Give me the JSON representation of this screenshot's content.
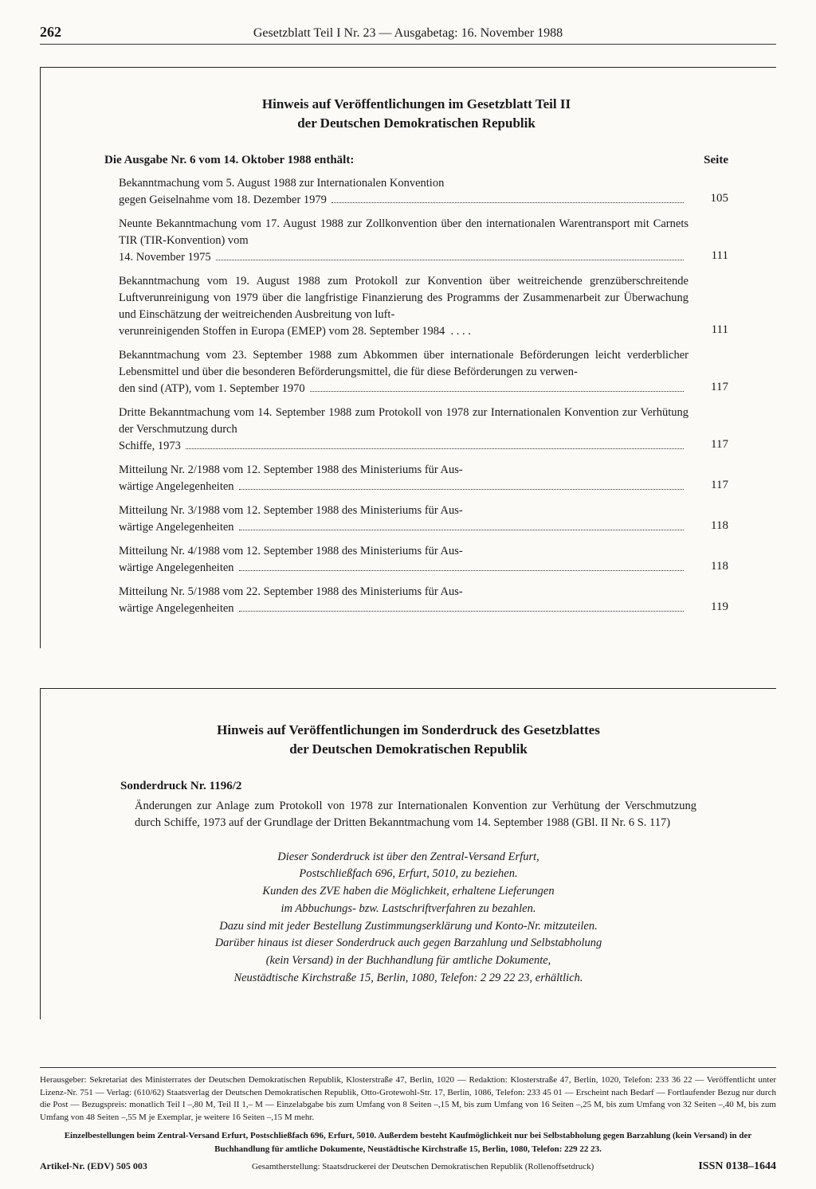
{
  "header": {
    "page_number": "262",
    "title": "Gesetzblatt Teil I Nr. 23 — Ausgabetag: 16. November 1988"
  },
  "section1": {
    "title_l1": "Hinweis auf Veröffentlichungen im Gesetzblatt Teil II",
    "title_l2": "der Deutschen Demokratischen Republik",
    "issue_head": "Die Ausgabe Nr. 6 vom 14. Oktober 1988 enthält:",
    "page_label": "Seite",
    "entries": [
      {
        "pre": "Bekanntmachung vom 5. August 1988 zur Internationalen Konvention",
        "last": "gegen Geiselnahme vom 18. Dezember 1979",
        "page": "105"
      },
      {
        "pre": "Neunte Bekanntmachung vom 17. August 1988 zur Zollkonvention über den internationalen Warentransport mit Carnets TIR (TIR-Konvention) vom",
        "last": "14. November 1975",
        "page": "111"
      },
      {
        "pre": "Bekanntmachung vom 19. August 1988 zum Protokoll zur Konvention über weitreichende grenzüberschreitende Luftverunreinigung von 1979 über die langfristige Finanzierung des Programms der Zusammenarbeit zur Überwachung und Einschätzung der weitreichenden Ausbreitung von luft-",
        "last": "verunreinigenden Stoffen in Europa (EMEP) vom 28. September 1984  . . . .",
        "page": "111",
        "nodots": true
      },
      {
        "pre": "Bekanntmachung vom 23. September 1988 zum Abkommen über internationale Beförderungen leicht verderblicher Lebensmittel und über die besonderen Beförderungsmittel, die für diese Beförderungen zu verwen-",
        "last": "den sind (ATP), vom 1. September 1970",
        "page": "117"
      },
      {
        "pre": "Dritte Bekanntmachung vom 14. September 1988 zum Protokoll von 1978 zur Internationalen Konvention zur Verhütung der Verschmutzung durch",
        "last": "Schiffe, 1973",
        "page": "117"
      },
      {
        "pre": "Mitteilung Nr. 2/1988 vom 12. September 1988 des Ministeriums für Aus-",
        "last": "wärtige Angelegenheiten",
        "page": "117"
      },
      {
        "pre": "Mitteilung Nr. 3/1988 vom 12. September 1988 des Ministeriums für Aus-",
        "last": "wärtige Angelegenheiten",
        "page": "118"
      },
      {
        "pre": "Mitteilung Nr. 4/1988 vom 12. September 1988 des Ministeriums für Aus-",
        "last": "wärtige Angelegenheiten",
        "page": "118"
      },
      {
        "pre": "Mitteilung Nr. 5/1988 vom 22. September 1988 des Ministeriums für Aus-",
        "last": "wärtige Angelegenheiten",
        "page": "119"
      }
    ]
  },
  "section2": {
    "title_l1": "Hinweis auf Veröffentlichungen im Sonderdruck des Gesetzblattes",
    "title_l2": "der Deutschen Demokratischen Republik",
    "sd_head": "Sonderdruck Nr. 1196/2",
    "sd_body": "Änderungen zur Anlage zum Protokoll von 1978 zur Internationalen Konvention zur Verhütung der Verschmutzung durch Schiffe, 1973 auf der Grundlage der Dritten Bekanntmachung vom 14. September 1988 (GBl. II Nr. 6 S. 117)",
    "italic": [
      "Dieser Sonderdruck ist über den Zentral-Versand Erfurt,",
      "Postschließfach 696, Erfurt, 5010, zu beziehen.",
      "Kunden des ZVE haben die Möglichkeit, erhaltene Lieferungen",
      "im Abbuchungs- bzw. Lastschriftverfahren zu bezahlen.",
      "Dazu sind mit jeder Bestellung Zustimmungserklärung und Konto-Nr. mitzuteilen.",
      "Darüber hinaus ist dieser Sonderdruck auch gegen Barzahlung und Selbstabholung",
      "(kein Versand) in der Buchhandlung für amtliche Dokumente,",
      "Neustädtische Kirchstraße 15, Berlin, 1080, Telefon: 2 29 22 23, erhältlich."
    ]
  },
  "footer": {
    "imprint": "Herausgeber: Sekretariat des Ministerrates der Deutschen Demokratischen Republik, Klosterstraße 47, Berlin, 1020 — Redaktion: Klosterstraße 47, Berlin, 1020, Telefon: 233 36 22 — Veröffentlicht unter Lizenz-Nr. 751 — Verlag: (610/62) Staatsverlag der Deutschen Demokratischen Republik, Otto-Grotewohl-Str. 17, Berlin, 1086, Telefon: 233 45 01 — Erscheint nach Bedarf — Fortlaufender Bezug nur durch die Post — Bezugspreis: monatlich Teil I –,80 M, Teil II 1,– M — Einzelabgabe bis zum Umfang von 8 Seiten –,15 M, bis zum Umfang von 16 Seiten –,25 M, bis zum Umfang von 32 Seiten –,40 M, bis zum Umfang von 48 Seiten –,55 M je Exemplar, je weitere 16 Seiten –,15 M mehr.",
    "bold": "Einzelbestellungen beim Zentral-Versand Erfurt, Postschließfach 696, Erfurt, 5010. Außerdem besteht Kaufmöglichkeit nur bei Selbstabholung gegen Barzahlung (kein Versand) in der Buchhandlung für amtliche Dokumente, Neustädtische Kirchstraße 15, Berlin, 1080, Telefon: 229 22 23.",
    "art": "Artikel-Nr. (EDV) 505 003",
    "mid": "Gesamtherstellung: Staatsdruckerei der Deutschen Demokratischen Republik (Rollenoffsetdruck)",
    "issn": "ISSN 0138–1644"
  }
}
